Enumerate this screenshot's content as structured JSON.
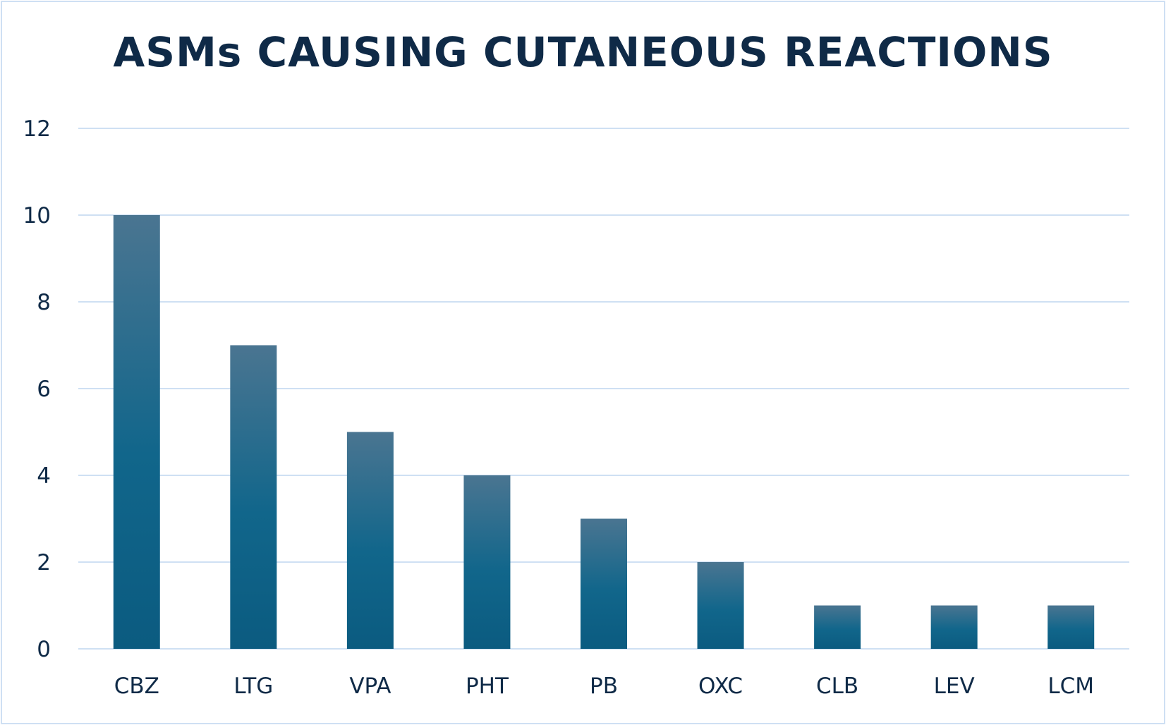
{
  "chart_data": {
    "type": "bar",
    "title": "ASMs CAUSING CUTANEOUS REACTIONS",
    "categories": [
      "CBZ",
      "LTG",
      "VPA",
      "PHT",
      "PB",
      "OXC",
      "CLB",
      "LEV",
      "LCM"
    ],
    "values": [
      10,
      7,
      5,
      4,
      3,
      2,
      1,
      1,
      1
    ],
    "xlabel": "",
    "ylabel": "",
    "ylim": [
      0,
      12
    ],
    "yticks": [
      0,
      2,
      4,
      6,
      8,
      10,
      12
    ],
    "grid": true,
    "legend": "none",
    "colors": {
      "bar_top": "#4a7591",
      "bar_bottom": "#0b5b80",
      "grid": "#cfe0f3",
      "text": "#0f2a47"
    }
  }
}
